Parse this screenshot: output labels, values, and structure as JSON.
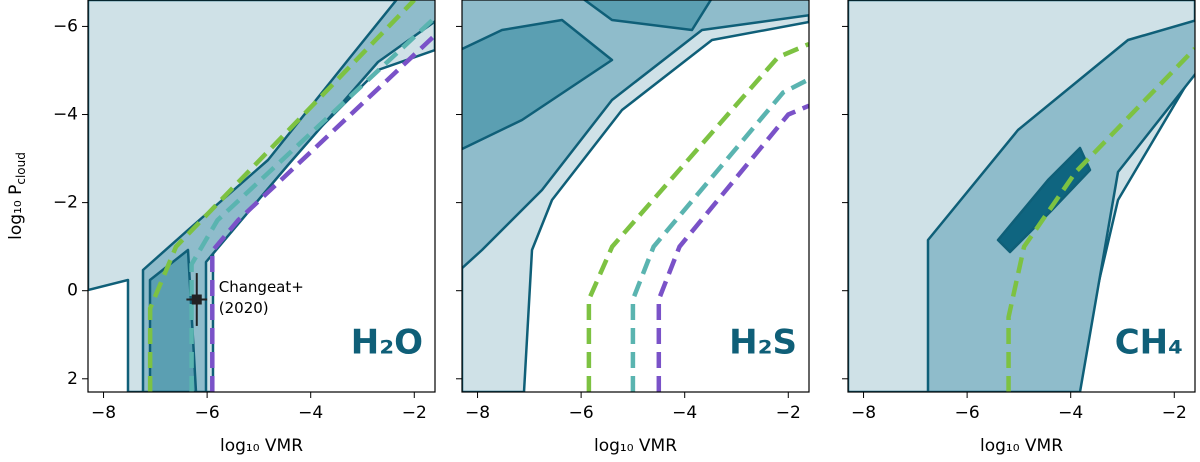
{
  "chart_data": [
    {
      "type": "line",
      "panel_label": "H₂O",
      "x_label": "log₁₀ VMR",
      "y_label": "log₁₀ P",
      "y_label_sub": "cloud",
      "xlim": [
        -8.3,
        -1.6
      ],
      "ylim": [
        -6.6,
        2.3
      ],
      "y_inverted": true,
      "xticks": [
        {
          "value": -8,
          "label": "−8"
        },
        {
          "value": -6,
          "label": "−6"
        },
        {
          "value": -4,
          "label": "−4"
        },
        {
          "value": -2,
          "label": "−2"
        }
      ],
      "yticks": [
        {
          "value": -6,
          "label": "−6"
        },
        {
          "value": -4,
          "label": "−4"
        },
        {
          "value": -2,
          "label": "−2"
        },
        0,
        2
      ],
      "series": [
        {
          "color": "#7dc242",
          "x": [
            -7.1,
            -7.1,
            -6.6,
            -2.0
          ],
          "y": [
            2.3,
            0.4,
            -1.0,
            -6.6
          ]
        },
        {
          "color": "#5ab4b0",
          "x": [
            -6.3,
            -6.3,
            -5.8,
            -1.6
          ],
          "y": [
            2.3,
            -0.6,
            -1.6,
            -6.2
          ]
        },
        {
          "color": "#7a52c8",
          "x": [
            -5.9,
            -5.9,
            -5.4,
            -1.6
          ],
          "y": [
            2.3,
            -0.9,
            -1.6,
            -5.8
          ]
        }
      ],
      "points": [
        {
          "x": -6.2,
          "y": 0.2,
          "xerr": 0.2,
          "yerr": 0.6
        }
      ],
      "annotation": [
        "Changeat+",
        "(2020)"
      ]
    },
    {
      "type": "line",
      "panel_label": "H₂S",
      "x_label": "log₁₀ VMR",
      "xlim": [
        -8.3,
        -1.6
      ],
      "ylim": [
        -6.6,
        2.3
      ],
      "y_inverted": true,
      "xticks": [
        {
          "value": -8,
          "label": "−8"
        },
        {
          "value": -6,
          "label": "−6"
        },
        {
          "value": -4,
          "label": "−4"
        },
        {
          "value": -2,
          "label": "−2"
        }
      ],
      "yticks": [
        -6,
        -4,
        -2,
        0,
        2
      ],
      "series": [
        {
          "color": "#7dc242",
          "x": [
            -5.85,
            -5.85,
            -5.4,
            -2.2,
            -1.6
          ],
          "y": [
            2.3,
            0.2,
            -1.0,
            -5.3,
            -5.6
          ]
        },
        {
          "color": "#5ab4b0",
          "x": [
            -5.0,
            -5.0,
            -4.6,
            -2.1,
            -1.6
          ],
          "y": [
            2.3,
            0.2,
            -1.0,
            -4.5,
            -4.8
          ]
        },
        {
          "color": "#7a52c8",
          "x": [
            -4.5,
            -4.5,
            -4.1,
            -2.0,
            -1.6
          ],
          "y": [
            2.3,
            0.2,
            -1.0,
            -4.0,
            -4.2
          ]
        }
      ]
    },
    {
      "type": "line",
      "panel_label": "CH₄",
      "x_label": "log₁₀ VMR",
      "xlim": [
        -8.3,
        -1.6
      ],
      "ylim": [
        -6.6,
        2.3
      ],
      "y_inverted": true,
      "xticks": [
        {
          "value": -8,
          "label": "−8"
        },
        {
          "value": -6,
          "label": "−6"
        },
        {
          "value": -4,
          "label": "−4"
        },
        {
          "value": -2,
          "label": "−2"
        }
      ],
      "yticks": [
        -6,
        -4,
        -2,
        0,
        2
      ],
      "series": [
        {
          "color": "#7dc242",
          "x": [
            -5.2,
            -5.2,
            -4.9,
            -3.9,
            -1.6
          ],
          "y": [
            2.3,
            0.6,
            -1.0,
            -2.7,
            -5.5
          ]
        }
      ]
    }
  ]
}
